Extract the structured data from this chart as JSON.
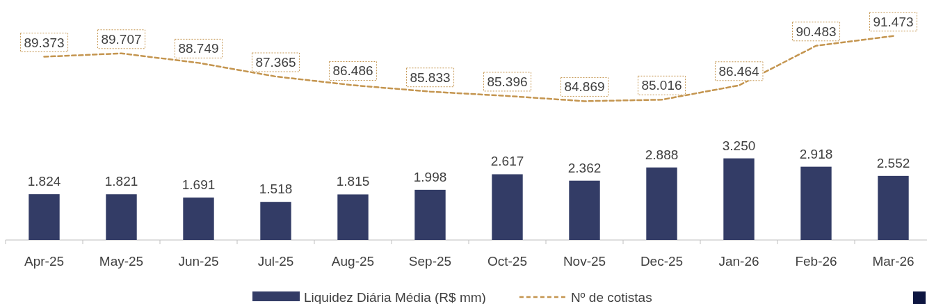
{
  "chart_data": {
    "type": "bar",
    "categories": [
      "Apr-25",
      "May-25",
      "Jun-25",
      "Jul-25",
      "Aug-25",
      "Sep-25",
      "Oct-25",
      "Nov-25",
      "Dec-25",
      "Jan-26",
      "Feb-26",
      "Mar-26"
    ],
    "series": [
      {
        "name": "Liquidez Diária Média (R$ mm)",
        "type": "bar",
        "color": "#333c66",
        "values": [
          1.824,
          1.821,
          1.691,
          1.518,
          1.815,
          1.998,
          2.617,
          2.362,
          2.888,
          3.25,
          2.918,
          2.552
        ],
        "value_labels": [
          "1.824",
          "1.821",
          "1.691",
          "1.518",
          "1.815",
          "1.998",
          "2.617",
          "2.362",
          "2.888",
          "3.250",
          "2.918",
          "2.552"
        ]
      },
      {
        "name": "Nº de cotistas",
        "type": "line",
        "axis": "y2",
        "color": "#c4954f",
        "line_style": "dashed",
        "values": [
          89.373,
          89.707,
          88.749,
          87.365,
          86.486,
          85.833,
          85.396,
          84.869,
          85.016,
          86.464,
          90.483,
          91.473
        ]
      }
    ],
    "ylim": [
      0,
      9
    ],
    "y2lim": [
      70.8,
      92.3
    ],
    "data_labels": true,
    "legend": "bottom",
    "tick_labels": "x",
    "grid": false
  }
}
